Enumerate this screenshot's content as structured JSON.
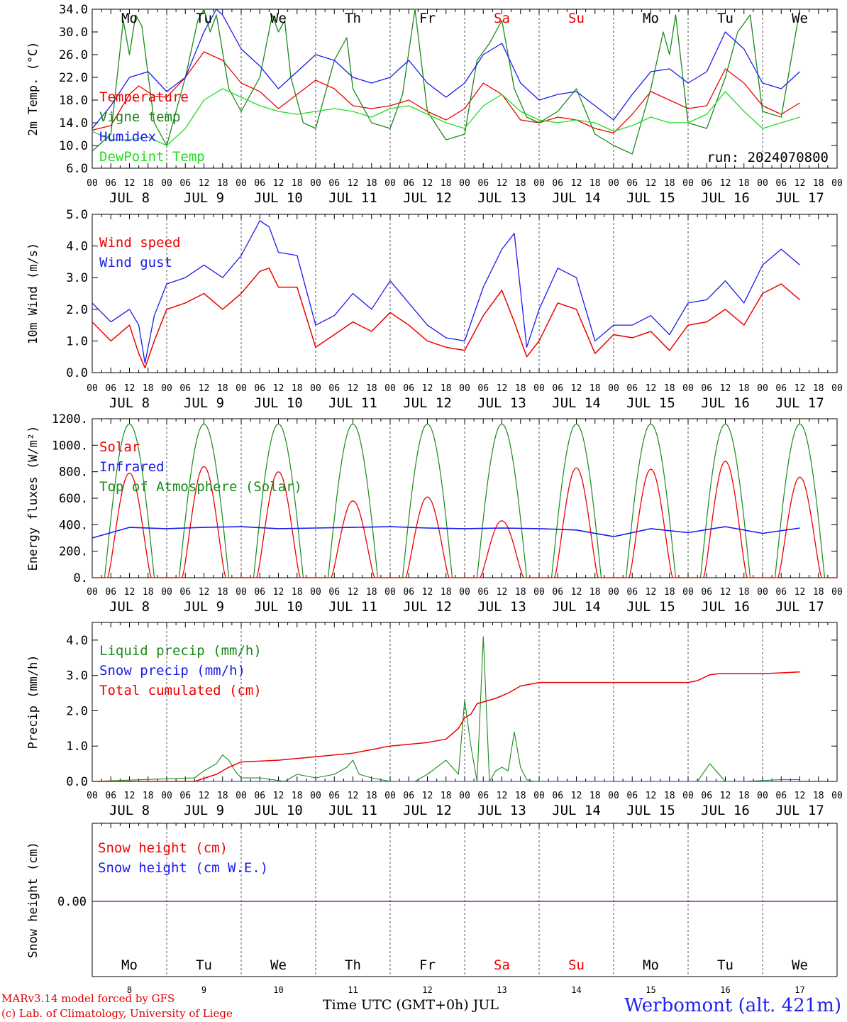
{
  "run_label": "run: 2024070800",
  "x_title": "Time UTC (GMT+0h) JUL",
  "credit_line1": "MARv3.14 model forced by GFS",
  "credit_line2": "(c) Lab. of Climatology, University of Liege",
  "station": "Werbomont (alt. 421m)",
  "weekdays": [
    "Mo",
    "Tu",
    "We",
    "Th",
    "Fr",
    "Sa",
    "Su",
    "Mo",
    "Tu",
    "We"
  ],
  "weekend_days": [
    5,
    6
  ],
  "day_labels": [
    "JUL  8",
    "JUL  9",
    "JUL 10",
    "JUL 11",
    "JUL 12",
    "JUL 13",
    "JUL 14",
    "JUL 15",
    "JUL 16",
    "JUL 17"
  ],
  "day_numbers": [
    "8",
    "9",
    "10",
    "11",
    "12",
    "13",
    "14",
    "15",
    "16",
    "17"
  ],
  "hour_ticks": [
    "00",
    "06",
    "12",
    "18"
  ],
  "end_tick": "00",
  "colors": {
    "red": "#ee0000",
    "dark_green": "#1a8a1a",
    "blue": "#1a1aee",
    "light_green": "#22dd22",
    "purple": "#8822aa",
    "weekend": "#ee0000"
  },
  "chart_data": [
    {
      "type": "line",
      "ylabel": "2m Temp. (°C)",
      "ylim": [
        6,
        34
      ],
      "yticks": [
        "6.0",
        "10.0",
        "14.0",
        "18.0",
        "22.0",
        "26.0",
        "30.0",
        "34.0"
      ],
      "x_unit": "hours since 2024-07-08 00 UTC",
      "series": [
        {
          "name": "Temperature",
          "color": "#ee0000",
          "x": [
            0,
            6,
            12,
            15,
            20,
            24,
            30,
            36,
            42,
            48,
            54,
            60,
            66,
            72,
            78,
            84,
            90,
            96,
            102,
            108,
            114,
            120,
            126,
            132,
            138,
            144,
            150,
            156,
            162,
            168,
            174,
            180,
            186,
            192,
            198,
            204,
            210,
            216,
            222,
            228
          ],
          "y": [
            12.7,
            13.5,
            19,
            20.5,
            18.7,
            18.5,
            22,
            26.5,
            25,
            21,
            19.5,
            16.5,
            19,
            21.5,
            20,
            17,
            16.5,
            17,
            18,
            16,
            14.5,
            16.5,
            21,
            19,
            14.5,
            14,
            15,
            14.5,
            13,
            12.2,
            15.5,
            19.5,
            18,
            16.5,
            17,
            23.5,
            21,
            17,
            15.5,
            17.5
          ]
        },
        {
          "name": "Vigne temp",
          "color": "#1a8a1a",
          "x": [
            0,
            6,
            10,
            12,
            14,
            16,
            20,
            24,
            30,
            34,
            36,
            38,
            40,
            44,
            48,
            54,
            58,
            60,
            62,
            64,
            68,
            72,
            78,
            82,
            84,
            86,
            90,
            96,
            100,
            104,
            108,
            114,
            120,
            124,
            128,
            132,
            136,
            140,
            144,
            150,
            156,
            162,
            168,
            174,
            180,
            184,
            186,
            188,
            192,
            198,
            204,
            208,
            212,
            216,
            222,
            228
          ],
          "y": [
            9,
            12,
            32,
            26,
            33,
            31,
            14,
            10,
            22,
            32,
            34,
            30,
            33,
            20,
            16,
            22,
            33,
            30,
            32,
            22,
            14,
            13,
            25,
            29,
            20,
            18,
            14,
            13,
            19,
            34,
            16,
            11,
            12,
            25,
            28,
            32,
            20,
            15,
            14,
            16,
            20,
            12,
            10,
            8.5,
            20,
            30,
            26,
            33,
            14,
            13,
            22,
            30,
            33,
            16,
            15,
            34
          ]
        },
        {
          "name": "Humidex",
          "color": "#1a1aee",
          "x": [
            0,
            6,
            12,
            18,
            24,
            30,
            36,
            40,
            42,
            48,
            54,
            60,
            66,
            72,
            78,
            84,
            90,
            96,
            102,
            108,
            114,
            120,
            126,
            132,
            138,
            144,
            150,
            156,
            162,
            168,
            174,
            180,
            186,
            192,
            198,
            204,
            210,
            216,
            222,
            228
          ],
          "y": [
            13,
            17,
            22,
            23,
            19.5,
            22,
            30,
            34,
            33,
            27,
            24,
            20,
            23,
            26,
            25,
            22,
            21,
            22,
            25,
            21,
            18.5,
            21,
            26,
            28,
            21,
            18,
            19,
            19.5,
            17,
            14.5,
            19,
            23,
            23.5,
            21,
            23,
            30,
            27,
            21,
            20,
            23
          ]
        },
        {
          "name": "DewPoint Temp",
          "color": "#22dd22",
          "x": [
            0,
            6,
            12,
            18,
            24,
            30,
            36,
            42,
            48,
            54,
            60,
            66,
            72,
            78,
            84,
            90,
            96,
            102,
            108,
            114,
            120,
            126,
            132,
            138,
            144,
            150,
            156,
            162,
            168,
            174,
            180,
            186,
            192,
            198,
            204,
            210,
            216,
            222,
            228
          ],
          "y": [
            12.5,
            11,
            11,
            11.5,
            10,
            13,
            18,
            20,
            18.5,
            17,
            16,
            15.5,
            16,
            16.5,
            16,
            15,
            16.5,
            17,
            15.5,
            14,
            13,
            17,
            19,
            16,
            14.5,
            14,
            14.5,
            14,
            12.5,
            13.5,
            15,
            14,
            14,
            15.5,
            19.5,
            16,
            13,
            14,
            15
          ]
        }
      ]
    },
    {
      "type": "line",
      "ylabel": "10m Wind (m/s)",
      "ylim": [
        0,
        5
      ],
      "yticks": [
        "0.0",
        "1.0",
        "2.0",
        "3.0",
        "4.0",
        "5.0"
      ],
      "x_unit": "hours since 2024-07-08 00 UTC",
      "series": [
        {
          "name": "Wind speed",
          "color": "#ee0000",
          "x": [
            0,
            6,
            12,
            15,
            17,
            20,
            24,
            30,
            36,
            42,
            48,
            54,
            57,
            60,
            66,
            72,
            78,
            84,
            90,
            96,
            102,
            108,
            114,
            120,
            126,
            132,
            136,
            140,
            144,
            150,
            156,
            162,
            168,
            174,
            180,
            186,
            192,
            198,
            204,
            210,
            216,
            222,
            228
          ],
          "y": [
            1.6,
            1,
            1.5,
            0.6,
            0.15,
            1,
            2,
            2.2,
            2.5,
            2,
            2.5,
            3.2,
            3.3,
            2.7,
            2.7,
            0.8,
            1.2,
            1.6,
            1.3,
            1.9,
            1.5,
            1,
            0.8,
            0.7,
            1.8,
            2.6,
            1.6,
            0.5,
            1,
            2.2,
            2,
            0.6,
            1.2,
            1.1,
            1.3,
            0.7,
            1.5,
            1.6,
            2,
            1.5,
            2.5,
            2.8,
            2.3
          ]
        },
        {
          "name": "Wind gust",
          "color": "#1a1aee",
          "x": [
            0,
            6,
            12,
            15,
            17,
            20,
            24,
            30,
            36,
            42,
            48,
            54,
            57,
            60,
            66,
            72,
            78,
            84,
            90,
            96,
            102,
            108,
            114,
            120,
            126,
            132,
            136,
            140,
            144,
            150,
            156,
            162,
            168,
            174,
            180,
            186,
            192,
            198,
            204,
            210,
            216,
            222,
            228
          ],
          "y": [
            2.2,
            1.6,
            2,
            1.5,
            0.3,
            1.8,
            2.8,
            3,
            3.4,
            3,
            3.7,
            4.8,
            4.6,
            3.8,
            3.7,
            1.5,
            1.8,
            2.5,
            2,
            2.9,
            2.2,
            1.5,
            1.1,
            1,
            2.7,
            3.9,
            4.4,
            0.8,
            2,
            3.3,
            3,
            1,
            1.5,
            1.5,
            1.8,
            1.2,
            2.2,
            2.3,
            2.9,
            2.2,
            3.4,
            3.9,
            3.4
          ]
        }
      ]
    },
    {
      "type": "line",
      "ylabel": "Energy fluxes (W/m²)",
      "ylim": [
        0,
        1200
      ],
      "yticks": [
        "0.",
        "200.",
        "400.",
        "600.",
        "800.",
        "1000.",
        "1200."
      ],
      "x_unit": "hours since 2024-07-08 00 UTC",
      "toa_peak": 1160,
      "series": [
        {
          "name": "Solar",
          "color": "#ee0000",
          "daily_peaks": [
            790,
            840,
            800,
            580,
            610,
            430,
            830,
            820,
            880,
            760
          ]
        },
        {
          "name": "Infrared",
          "color": "#1a1aee",
          "x": [
            0,
            12,
            24,
            36,
            48,
            60,
            72,
            84,
            96,
            108,
            120,
            132,
            144,
            156,
            168,
            180,
            192,
            204,
            216,
            228
          ],
          "y": [
            300,
            380,
            370,
            380,
            385,
            370,
            375,
            380,
            385,
            375,
            370,
            375,
            370,
            360,
            310,
            370,
            340,
            385,
            335,
            375
          ]
        },
        {
          "name": "Top of Atmosphere (Solar)",
          "color": "#1a8a1a",
          "daily_peaks": [
            1160,
            1160,
            1160,
            1160,
            1160,
            1160,
            1160,
            1160,
            1160,
            1160
          ]
        }
      ]
    },
    {
      "type": "line",
      "ylabel": "Precip (mm/h)",
      "ylim": [
        0,
        4.5
      ],
      "yticks": [
        "0.0",
        "1.0",
        "2.0",
        "3.0",
        "4.0"
      ],
      "x_unit": "hours since 2024-07-08 00 UTC",
      "series": [
        {
          "name": "Liquid precip (mm/h)",
          "color": "#1a8a1a",
          "x": [
            0,
            33,
            36,
            40,
            42,
            44,
            46,
            48,
            54,
            62,
            66,
            72,
            78,
            82,
            84,
            86,
            90,
            96,
            104,
            108,
            114,
            118,
            120,
            122,
            124,
            126,
            128,
            130,
            132,
            134,
            136,
            138,
            140,
            142,
            144,
            148,
            152,
            154,
            156,
            160,
            165,
            170,
            180,
            195,
            199,
            200,
            204,
            210,
            222,
            228
          ],
          "y": [
            0,
            0.1,
            0.3,
            0.5,
            0.75,
            0.6,
            0.3,
            0.1,
            0.1,
            0,
            0.2,
            0.1,
            0.2,
            0.4,
            0.6,
            0.2,
            0.1,
            0,
            0,
            0.2,
            0.6,
            0.2,
            2.3,
            1,
            0,
            4.1,
            0,
            0.3,
            0.4,
            0.3,
            1.4,
            0.4,
            0.05,
            0,
            0,
            0,
            0,
            0,
            0,
            0,
            0,
            0,
            0,
            0,
            0.5,
            0.4,
            0,
            0,
            0.05,
            0.05
          ]
        },
        {
          "name": "Snow precip (mm/h)",
          "color": "#1a1aee",
          "x": [
            0,
            228
          ],
          "y": [
            0,
            0
          ]
        },
        {
          "name": "Total cumulated (cm)",
          "color": "#ee0000",
          "x": [
            0,
            33,
            40,
            44,
            48,
            60,
            72,
            84,
            96,
            108,
            114,
            118,
            120,
            122,
            124,
            126,
            130,
            134,
            138,
            144,
            156,
            170,
            180,
            186,
            192,
            195,
            199,
            202,
            210,
            216,
            228
          ],
          "y": [
            0,
            0,
            0.2,
            0.4,
            0.55,
            0.6,
            0.7,
            0.8,
            1,
            1.1,
            1.2,
            1.5,
            1.8,
            1.9,
            2.2,
            2.25,
            2.35,
            2.5,
            2.7,
            2.8,
            2.8,
            2.8,
            2.8,
            2.8,
            2.8,
            2.85,
            3.02,
            3.05,
            3.05,
            3.05,
            3.1
          ]
        }
      ]
    },
    {
      "type": "line",
      "ylabel": "Snow height (cm)",
      "ytick": "0.00",
      "x_unit": "hours since 2024-07-08 00 UTC",
      "series": [
        {
          "name": "Snow height (cm)",
          "color": "#ee0000",
          "x": [
            0,
            240
          ],
          "y": [
            0,
            0
          ]
        },
        {
          "name": "Snow height (cm W.E.)",
          "color": "#1a1aee",
          "x": [
            0,
            240
          ],
          "y": [
            0,
            0
          ]
        }
      ]
    }
  ]
}
